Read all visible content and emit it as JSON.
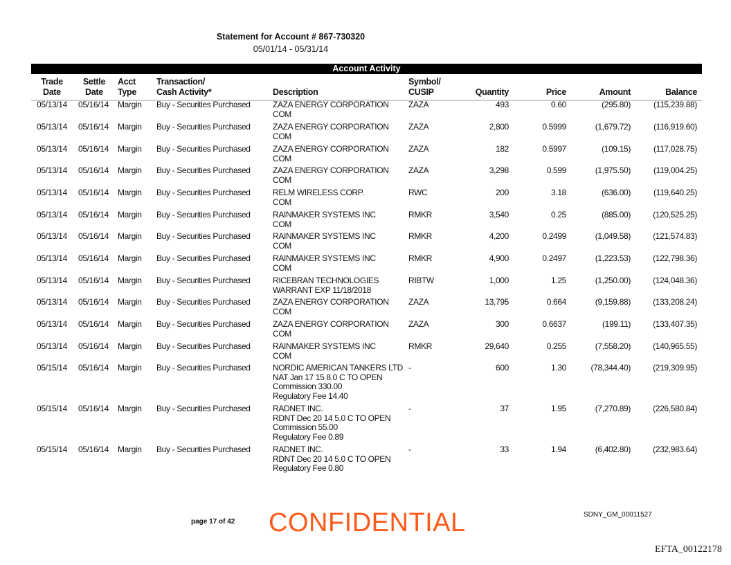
{
  "header": {
    "title": "Statement for Account # 867-730320",
    "period": "05/01/14 - 05/31/14",
    "section_title": "Account Activity"
  },
  "columns": {
    "trade_date": [
      "Trade",
      "Date"
    ],
    "settle_date": [
      "Settle",
      "Date"
    ],
    "acct_type": [
      "Acct",
      "Type"
    ],
    "transaction": [
      "Transaction/",
      "Cash Activity*"
    ],
    "description": [
      "",
      "Description"
    ],
    "symbol": [
      "Symbol/",
      "CUSIP"
    ],
    "quantity": [
      "",
      "Quantity"
    ],
    "price": [
      "",
      "Price"
    ],
    "amount": [
      "",
      "Amount"
    ],
    "balance": [
      "",
      "Balance"
    ]
  },
  "rows": [
    {
      "trade": "05/13/14",
      "settle": "05/16/14",
      "acct": "Margin",
      "txn": "Buy - Securities Purchased",
      "desc": [
        "ZAZA ENERGY CORPORATION",
        "COM"
      ],
      "symbol": "ZAZA",
      "qty": "493",
      "price": "0.60",
      "amount": "(295.80)",
      "balance": "(115,239.88)"
    },
    {
      "trade": "05/13/14",
      "settle": "05/16/14",
      "acct": "Margin",
      "txn": "Buy - Securities Purchased",
      "desc": [
        "ZAZA ENERGY CORPORATION",
        "COM"
      ],
      "symbol": "ZAZA",
      "qty": "2,800",
      "price": "0.5999",
      "amount": "(1,679.72)",
      "balance": "(116,919.60)"
    },
    {
      "trade": "05/13/14",
      "settle": "05/16/14",
      "acct": "Margin",
      "txn": "Buy - Securities Purchased",
      "desc": [
        "ZAZA ENERGY CORPORATION",
        "COM"
      ],
      "symbol": "ZAZA",
      "qty": "182",
      "price": "0.5997",
      "amount": "(109.15)",
      "balance": "(117,028.75)"
    },
    {
      "trade": "05/13/14",
      "settle": "05/16/14",
      "acct": "Margin",
      "txn": "Buy - Securities Purchased",
      "desc": [
        "ZAZA ENERGY CORPORATION",
        "COM"
      ],
      "symbol": "ZAZA",
      "qty": "3,298",
      "price": "0.599",
      "amount": "(1,975.50)",
      "balance": "(119,004.25)"
    },
    {
      "trade": "05/13/14",
      "settle": "05/16/14",
      "acct": "Margin",
      "txn": "Buy - Securities Purchased",
      "desc": [
        "RELM WIRELESS CORP.",
        "COM"
      ],
      "symbol": "RWC",
      "qty": "200",
      "price": "3.18",
      "amount": "(636.00)",
      "balance": "(119,640.25)"
    },
    {
      "trade": "05/13/14",
      "settle": "05/16/14",
      "acct": "Margin",
      "txn": "Buy - Securities Purchased",
      "desc": [
        "RAINMAKER SYSTEMS INC",
        "COM"
      ],
      "symbol": "RMKR",
      "qty": "3,540",
      "price": "0.25",
      "amount": "(885.00)",
      "balance": "(120,525.25)"
    },
    {
      "trade": "05/13/14",
      "settle": "05/16/14",
      "acct": "Margin",
      "txn": "Buy - Securities Purchased",
      "desc": [
        "RAINMAKER SYSTEMS INC",
        "COM"
      ],
      "symbol": "RMKR",
      "qty": "4,200",
      "price": "0.2499",
      "amount": "(1,049.58)",
      "balance": "(121,574.83)"
    },
    {
      "trade": "05/13/14",
      "settle": "05/16/14",
      "acct": "Margin",
      "txn": "Buy - Securities Purchased",
      "desc": [
        "RAINMAKER SYSTEMS INC",
        "COM"
      ],
      "symbol": "RMKR",
      "qty": "4,900",
      "price": "0.2497",
      "amount": "(1,223.53)",
      "balance": "(122,798.36)"
    },
    {
      "trade": "05/13/14",
      "settle": "05/16/14",
      "acct": "Margin",
      "txn": "Buy - Securities Purchased",
      "desc": [
        "RICEBRAN TECHNOLOGIES",
        "WARRANT EXP 11/18/2018"
      ],
      "symbol": "RIBTW",
      "qty": "1,000",
      "price": "1.25",
      "amount": "(1,250.00)",
      "balance": "(124,048.36)"
    },
    {
      "trade": "05/13/14",
      "settle": "05/16/14",
      "acct": "Margin",
      "txn": "Buy - Securities Purchased",
      "desc": [
        "ZAZA ENERGY CORPORATION",
        "COM"
      ],
      "symbol": "ZAZA",
      "qty": "13,795",
      "price": "0.664",
      "amount": "(9,159.88)",
      "balance": "(133,208.24)"
    },
    {
      "trade": "05/13/14",
      "settle": "05/16/14",
      "acct": "Margin",
      "txn": "Buy - Securities Purchased",
      "desc": [
        "ZAZA ENERGY CORPORATION",
        "COM"
      ],
      "symbol": "ZAZA",
      "qty": "300",
      "price": "0.6637",
      "amount": "(199.11)",
      "balance": "(133,407.35)"
    },
    {
      "trade": "05/13/14",
      "settle": "05/16/14",
      "acct": "Margin",
      "txn": "Buy - Securities Purchased",
      "desc": [
        "RAINMAKER SYSTEMS INC",
        "COM"
      ],
      "symbol": "RMKR",
      "qty": "29,640",
      "price": "0.255",
      "amount": "(7,558.20)",
      "balance": "(140,965.55)"
    },
    {
      "trade": "05/15/14",
      "settle": "05/16/14",
      "acct": "Margin",
      "txn": "Buy - Securities Purchased",
      "desc": [
        "NORDIC AMERICAN TANKERS LTD",
        "NAT Jan 17 15 8.0 C  TO OPEN",
        "Commission 330.00",
        "Regulatory Fee 14.40"
      ],
      "symbol": "-",
      "qty": "600",
      "price": "1.30",
      "amount": "(78,344.40)",
      "balance": "(219,309.95)"
    },
    {
      "trade": "05/15/14",
      "settle": "05/16/14",
      "acct": "Margin",
      "txn": "Buy - Securities Purchased",
      "desc": [
        "RADNET INC.",
        "RDNT Dec 20 14 5.0 C  TO OPEN",
        "Commission 55.00",
        "Regulatory Fee 0.89"
      ],
      "symbol": "-",
      "qty": "37",
      "price": "1.95",
      "amount": "(7,270.89)",
      "balance": "(226,580.84)"
    },
    {
      "trade": "05/15/14",
      "settle": "05/16/14",
      "acct": "Margin",
      "txn": "Buy - Securities Purchased",
      "desc": [
        "RADNET INC.",
        "RDNT Dec 20 14 5.0 C  TO OPEN",
        "Regulatory Fee 0.80"
      ],
      "symbol": "-",
      "qty": "33",
      "price": "1.94",
      "amount": "(6,402.80)",
      "balance": "(232,983.64)"
    }
  ],
  "footer": {
    "page": "page 17 of 42",
    "watermark": "CONFIDENTIAL",
    "bates": "SDNY_GM_00011527",
    "efta": "EFTA_00122178",
    "watermark_color": "#ff5a1a"
  }
}
